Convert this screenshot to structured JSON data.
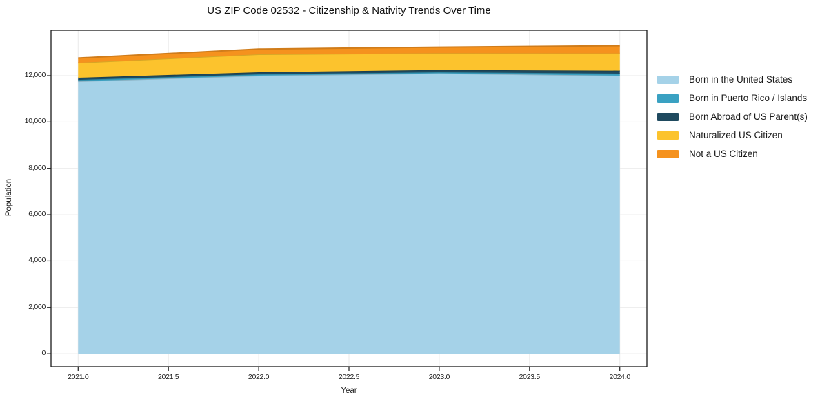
{
  "title": "US ZIP Code 02532 - Citizenship & Nativity Trends Over Time",
  "chart_data": {
    "type": "area",
    "stacked": true,
    "title": "US ZIP Code 02532 - Citizenship & Nativity Trends Over Time",
    "xlabel": "Year",
    "ylabel": "Population",
    "x": [
      2021,
      2022,
      2023,
      2024
    ],
    "series": [
      {
        "name": "Born in the United States",
        "color": "#A5D2E8",
        "values": [
          11760,
          12000,
          12100,
          12000
        ]
      },
      {
        "name": "Born in Puerto Rico / Islands",
        "color": "#3AA1C2",
        "values": [
          60,
          60,
          50,
          90
        ]
      },
      {
        "name": "Born Abroad of US Parent(s)",
        "color": "#1F4A5F",
        "values": [
          90,
          90,
          100,
          130
        ]
      },
      {
        "name": "Naturalized US Citizen",
        "color": "#FCC32D",
        "values": [
          650,
          770,
          720,
          740
        ]
      },
      {
        "name": "Not a US Citizen",
        "color": "#F5921E",
        "values": [
          200,
          230,
          260,
          330
        ]
      }
    ],
    "x_tick_labels": [
      "2021.0",
      "2021.5",
      "2022.0",
      "2022.5",
      "2023.0",
      "2023.5",
      "2024.0"
    ],
    "x_tick_values": [
      2021,
      2021.5,
      2022,
      2022.5,
      2023,
      2023.5,
      2024
    ],
    "y_tick_labels": [
      "0",
      "2,000",
      "4,000",
      "6,000",
      "8,000",
      "10,000",
      "12,000"
    ],
    "y_tick_values": [
      0,
      2000,
      4000,
      6000,
      8000,
      10000,
      12000
    ],
    "xlim": [
      2020.85,
      2024.15
    ],
    "ylim": [
      -560,
      13960
    ],
    "grid": true,
    "legend_position": "center-right"
  },
  "colors": {
    "background": "#ffffff",
    "grid": "#e9e9e9",
    "spine": "#1a1a1a",
    "tick": "#1a1a1a",
    "text": "#1a1a1a"
  }
}
